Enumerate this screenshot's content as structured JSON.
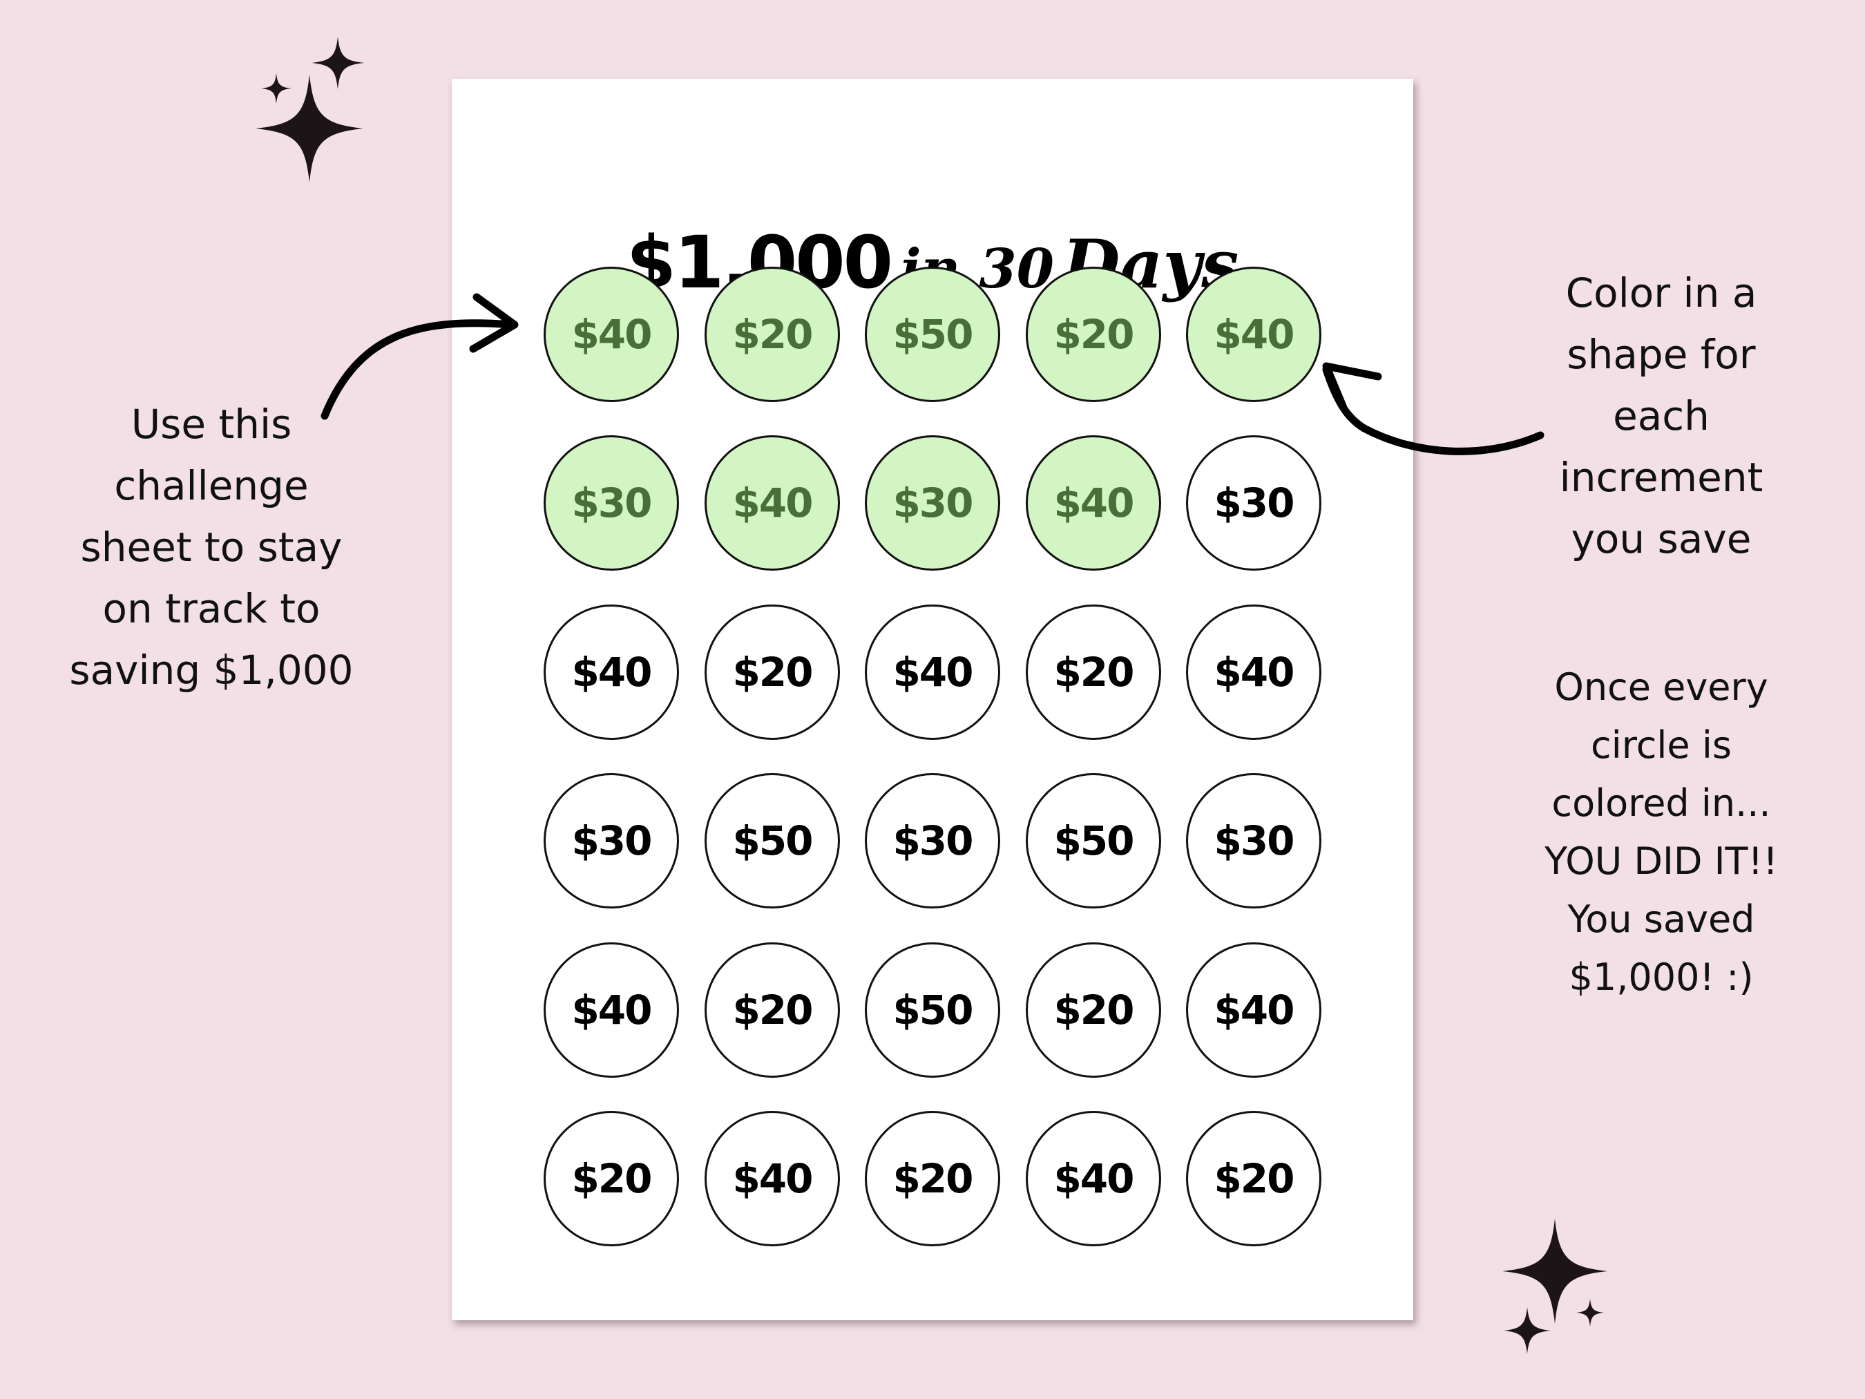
{
  "title": {
    "amount": "$1,000",
    "connector": "in 30",
    "days": "Days"
  },
  "colors": {
    "background": "#f2e0e6",
    "filled_circle": "#d3f5c4",
    "filled_text": "#4a6e38",
    "outline": "#111111"
  },
  "grid": {
    "columns": 5,
    "values": [
      [
        "$40",
        "$20",
        "$50",
        "$20",
        "$40"
      ],
      [
        "$30",
        "$40",
        "$30",
        "$40",
        "$30"
      ],
      [
        "$40",
        "$20",
        "$40",
        "$20",
        "$40"
      ],
      [
        "$30",
        "$50",
        "$30",
        "$50",
        "$30"
      ],
      [
        "$40",
        "$20",
        "$50",
        "$20",
        "$40"
      ],
      [
        "$20",
        "$40",
        "$20",
        "$40",
        "$20"
      ]
    ],
    "filled_count": 9
  },
  "left_note": {
    "lines": [
      "Use this",
      "challenge",
      "sheet to stay",
      "on track to",
      "saving $1,000"
    ]
  },
  "right_note": {
    "lines": [
      "Color in a",
      "shape for",
      "each",
      "increment",
      "you save"
    ]
  },
  "completion_note": {
    "lines": [
      "Once every",
      "circle is",
      "colored in...",
      "YOU DID IT!!",
      "You saved",
      "$1,000! :)"
    ]
  },
  "icons": [
    "sparkle-icon",
    "curved-arrow-icon"
  ]
}
